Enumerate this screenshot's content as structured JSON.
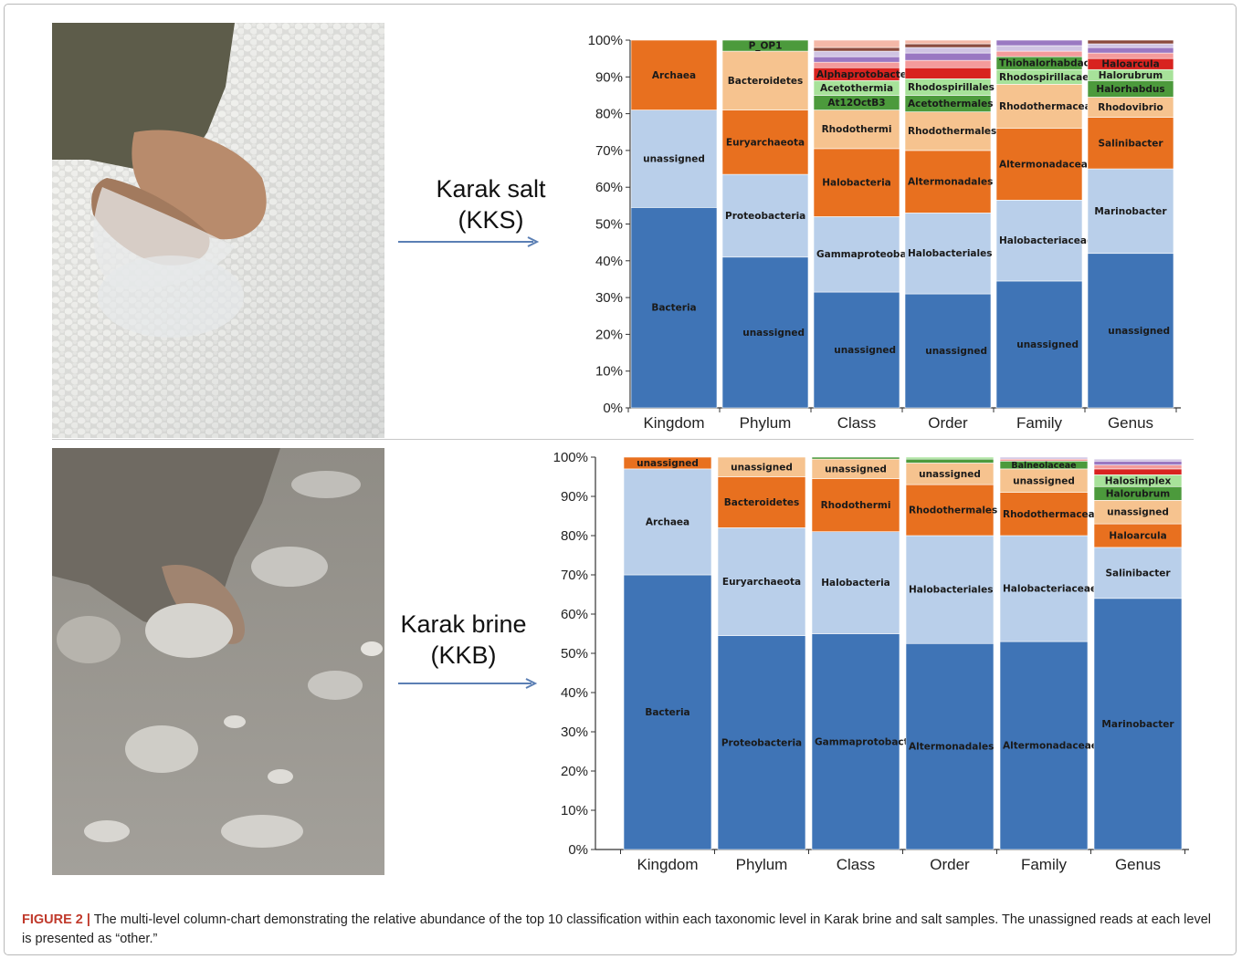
{
  "figure": {
    "caption_label": "FIGURE 2 |",
    "caption_text": "The multi-level column-chart demonstrating the relative abundance of the top 10 classification within each taxonomic level in Karak brine and salt samples. The unassigned reads at each level is presented as “other.”"
  },
  "panels": [
    {
      "line1": "Karak salt",
      "line2": "(KKS)"
    },
    {
      "line1": "Karak brine",
      "line2": "(KKB)"
    }
  ],
  "chart_data": [
    {
      "type": "bar",
      "stacked": true,
      "sample": "Karak salt (KKS)",
      "categories": [
        "Kingdom",
        "Phylum",
        "Class",
        "Order",
        "Family",
        "Genus"
      ],
      "yticks": [
        "0%",
        "10%",
        "20%",
        "30%",
        "40%",
        "50%",
        "60%",
        "70%",
        "80%",
        "90%",
        "100%"
      ],
      "ylim": [
        0,
        100
      ],
      "stacks": [
        {
          "category": "Kingdom",
          "segments": [
            {
              "label": "Bacteria",
              "value": 54.5,
              "color": "#3f74b6"
            },
            {
              "label": "unassigned",
              "value": 26.5,
              "color": "#b9cfea"
            },
            {
              "label": "Archaea",
              "value": 19.0,
              "color": "#e8701f"
            }
          ]
        },
        {
          "category": "Phylum",
          "segments": [
            {
              "label": "unassigned",
              "value": 41.0,
              "color": "#3f74b6",
              "align": "right"
            },
            {
              "label": "Proteobacteria",
              "value": 22.5,
              "color": "#b9cfea"
            },
            {
              "label": "Euryarchaeota",
              "value": 17.5,
              "color": "#e8701f"
            },
            {
              "label": "Bacteroidetes",
              "value": 16.0,
              "color": "#f6c38f"
            },
            {
              "label": "P_OP1",
              "value": 3.0,
              "color": "#4c9a3c"
            }
          ]
        },
        {
          "category": "Class",
          "segments": [
            {
              "label": "unassigned",
              "value": 31.5,
              "color": "#3f74b6",
              "align": "right"
            },
            {
              "label": "Gammaproteobacteria",
              "value": 20.5,
              "color": "#b9cfea"
            },
            {
              "label": "Halobacteria",
              "value": 18.5,
              "color": "#e8701f"
            },
            {
              "label": "Rhodothermi",
              "value": 10.5,
              "color": "#f6c38f"
            },
            {
              "label": "At12OctB3",
              "value": 4.0,
              "color": "#4c9a3c"
            },
            {
              "label": "Acetothermia",
              "value": 4.0,
              "color": "#a7e29a"
            },
            {
              "label": "Alphaprotobacteria",
              "value": 3.5,
              "color": "#d8231f"
            },
            {
              "label": "",
              "value": 1.5,
              "color": "#f49b9b"
            },
            {
              "label": "",
              "value": 1.5,
              "color": "#9a78c2"
            },
            {
              "label": "",
              "value": 1.5,
              "color": "#d0c4e3"
            },
            {
              "label": "",
              "value": 1.0,
              "color": "#8b4a3d"
            },
            {
              "label": "",
              "value": 2.0,
              "color": "#f4b8a8"
            }
          ]
        },
        {
          "category": "Order",
          "segments": [
            {
              "label": "unassigned",
              "value": 31.0,
              "color": "#3f74b6",
              "align": "right"
            },
            {
              "label": "Halobacteriales",
              "value": 22.0,
              "color": "#b9cfea"
            },
            {
              "label": "Altermonadales",
              "value": 17.0,
              "color": "#e8701f"
            },
            {
              "label": "Rhodothermales",
              "value": 10.5,
              "color": "#f6c38f"
            },
            {
              "label": "Acetothermales",
              "value": 4.5,
              "color": "#4c9a3c"
            },
            {
              "label": "Rhodospirillales",
              "value": 4.5,
              "color": "#a7e29a"
            },
            {
              "label": "",
              "value": 3.0,
              "color": "#d8231f"
            },
            {
              "label": "",
              "value": 2.0,
              "color": "#f49b9b"
            },
            {
              "label": "",
              "value": 2.0,
              "color": "#9a78c2"
            },
            {
              "label": "",
              "value": 1.5,
              "color": "#d0c4e3"
            },
            {
              "label": "",
              "value": 1.0,
              "color": "#8b4a3d"
            },
            {
              "label": "",
              "value": 1.0,
              "color": "#f4b8a8"
            }
          ]
        },
        {
          "category": "Family",
          "segments": [
            {
              "label": "unassigned",
              "value": 34.5,
              "color": "#3f74b6",
              "align": "right"
            },
            {
              "label": "Halobacteriaceae",
              "value": 22.0,
              "color": "#b9cfea"
            },
            {
              "label": "Altermonadaceae",
              "value": 19.5,
              "color": "#e8701f"
            },
            {
              "label": "Rhodothermaceae",
              "value": 12.0,
              "color": "#f6c38f"
            },
            {
              "label": "Rhodospirillacae",
              "value": 4.0,
              "color": "#a7e29a"
            },
            {
              "label": "Thiohalorhabdaceae",
              "value": 3.5,
              "color": "#4c9a3c"
            },
            {
              "label": "",
              "value": 1.5,
              "color": "#f49b9b"
            },
            {
              "label": "",
              "value": 1.5,
              "color": "#d0c4e3"
            },
            {
              "label": "",
              "value": 1.5,
              "color": "#9a78c2"
            }
          ]
        },
        {
          "category": "Genus",
          "segments": [
            {
              "label": "unassigned",
              "value": 42.0,
              "color": "#3f74b6",
              "align": "right"
            },
            {
              "label": "Marinobacter",
              "value": 23.0,
              "color": "#b9cfea"
            },
            {
              "label": "Salinibacter",
              "value": 14.0,
              "color": "#e8701f"
            },
            {
              "label": "Rhodovibrio",
              "value": 5.5,
              "color": "#f6c38f"
            },
            {
              "label": "Halorhabdus",
              "value": 4.5,
              "color": "#4c9a3c"
            },
            {
              "label": "Halorubrum",
              "value": 3.0,
              "color": "#a7e29a"
            },
            {
              "label": "Haloarcula",
              "value": 3.0,
              "color": "#d8231f"
            },
            {
              "label": "",
              "value": 1.5,
              "color": "#f49b9b"
            },
            {
              "label": "",
              "value": 1.5,
              "color": "#9a78c2"
            },
            {
              "label": "",
              "value": 1.0,
              "color": "#d0c4e3"
            },
            {
              "label": "",
              "value": 1.0,
              "color": "#8b4a3d"
            }
          ]
        }
      ]
    },
    {
      "type": "bar",
      "stacked": true,
      "sample": "Karak brine (KKB)",
      "categories": [
        "Kingdom",
        "Phylum",
        "Class",
        "Order",
        "Family",
        "Genus"
      ],
      "yticks": [
        "0%",
        "10%",
        "20%",
        "30%",
        "40%",
        "50%",
        "60%",
        "70%",
        "80%",
        "90%",
        "100%"
      ],
      "ylim": [
        0,
        100
      ],
      "stacks": [
        {
          "category": "Kingdom",
          "segments": [
            {
              "label": "Bacteria",
              "value": 70.0,
              "color": "#3f74b6"
            },
            {
              "label": "Archaea",
              "value": 27.0,
              "color": "#b9cfea"
            },
            {
              "label": "unassigned",
              "value": 3.0,
              "color": "#e8701f"
            }
          ]
        },
        {
          "category": "Phylum",
          "segments": [
            {
              "label": "Proteobacteria",
              "value": 54.5,
              "color": "#3f74b6"
            },
            {
              "label": "Euryarchaeota",
              "value": 27.5,
              "color": "#b9cfea"
            },
            {
              "label": "Bacteroidetes",
              "value": 13.0,
              "color": "#e8701f"
            },
            {
              "label": "unassigned",
              "value": 5.0,
              "color": "#f6c38f"
            }
          ]
        },
        {
          "category": "Class",
          "segments": [
            {
              "label": "Gammaprotobacteria",
              "value": 55.0,
              "color": "#3f74b6"
            },
            {
              "label": "Halobacteria",
              "value": 26.0,
              "color": "#b9cfea"
            },
            {
              "label": "Rhodothermi",
              "value": 13.5,
              "color": "#e8701f"
            },
            {
              "label": "unassigned",
              "value": 5.0,
              "color": "#f6c38f"
            },
            {
              "label": "",
              "value": 0.5,
              "color": "#4c9a3c"
            }
          ]
        },
        {
          "category": "Order",
          "segments": [
            {
              "label": "Altermonadales",
              "value": 52.5,
              "color": "#3f74b6"
            },
            {
              "label": "Halobacteriales",
              "value": 27.5,
              "color": "#b9cfea"
            },
            {
              "label": "Rhodothermales",
              "value": 13.0,
              "color": "#e8701f"
            },
            {
              "label": "unassigned",
              "value": 5.5,
              "color": "#f6c38f"
            },
            {
              "label": "",
              "value": 1.0,
              "color": "#4c9a3c"
            },
            {
              "label": "",
              "value": 0.5,
              "color": "#a7e29a"
            }
          ]
        },
        {
          "category": "Family",
          "segments": [
            {
              "label": "Altermonadaceae",
              "value": 53.0,
              "color": "#3f74b6"
            },
            {
              "label": "Halobacteriaceae",
              "value": 27.0,
              "color": "#b9cfea"
            },
            {
              "label": "Rhodothermaceae",
              "value": 11.0,
              "color": "#e8701f"
            },
            {
              "label": "unassigned",
              "value": 6.0,
              "color": "#f6c38f"
            },
            {
              "label": "Balneolaceae",
              "value": 2.0,
              "color": "#4c9a3c"
            },
            {
              "label": "",
              "value": 0.5,
              "color": "#f49b9b"
            },
            {
              "label": "",
              "value": 0.5,
              "color": "#d0c4e3"
            }
          ]
        },
        {
          "category": "Genus",
          "segments": [
            {
              "label": "Marinobacter",
              "value": 64.0,
              "color": "#3f74b6"
            },
            {
              "label": "Salinibacter",
              "value": 13.0,
              "color": "#b9cfea"
            },
            {
              "label": "Haloarcula",
              "value": 6.0,
              "color": "#e8701f"
            },
            {
              "label": "unassigned",
              "value": 6.0,
              "color": "#f6c38f"
            },
            {
              "label": "Halorubrum",
              "value": 3.5,
              "color": "#4c9a3c"
            },
            {
              "label": "Halosimplex",
              "value": 3.0,
              "color": "#a7e29a"
            },
            {
              "label": "",
              "value": 1.5,
              "color": "#d8231f"
            },
            {
              "label": "",
              "value": 1.0,
              "color": "#f49b9b"
            },
            {
              "label": "",
              "value": 1.0,
              "color": "#9a78c2"
            },
            {
              "label": "",
              "value": 0.5,
              "color": "#d0c4e3"
            }
          ]
        }
      ]
    }
  ]
}
